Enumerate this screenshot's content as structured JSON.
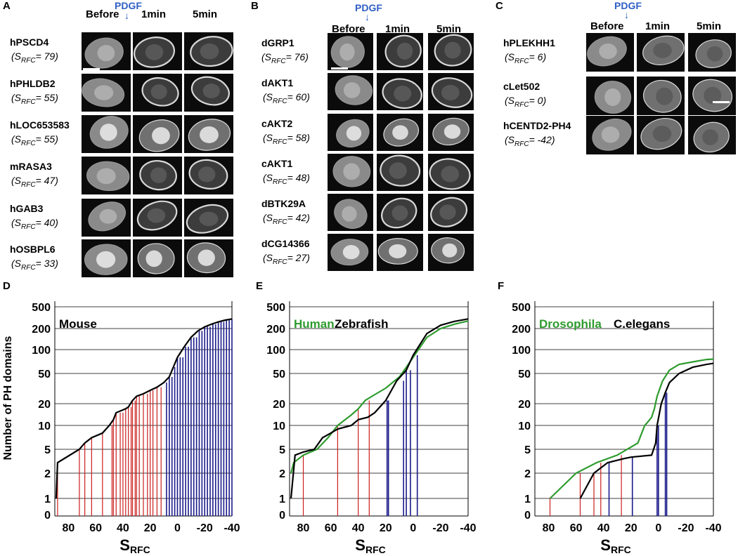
{
  "panels_top": [
    {
      "letter": "A",
      "stimulus": "PDGF",
      "columns": [
        "Before",
        "1min",
        "5min"
      ],
      "rows": [
        {
          "gene": "hPSCD4",
          "s_value": "79"
        },
        {
          "gene": "hPHLDB2",
          "s_value": "55"
        },
        {
          "gene": "hLOC653583",
          "s_value": "55"
        },
        {
          "gene": "mRASA3",
          "s_value": "47"
        },
        {
          "gene": "hGAB3",
          "s_value": "40"
        },
        {
          "gene": "hOSBPL6",
          "s_value": "33"
        }
      ]
    },
    {
      "letter": "B",
      "stimulus": "PDGF",
      "columns": [
        "Before",
        "1min",
        "5min"
      ],
      "rows": [
        {
          "gene": "dGRP1",
          "s_value": "76"
        },
        {
          "gene": "dAKT1",
          "s_value": "60"
        },
        {
          "gene": "cAKT2",
          "s_value": "58"
        },
        {
          "gene": "cAKT1",
          "s_value": "48"
        },
        {
          "gene": "dBTK29A",
          "s_value": "42"
        },
        {
          "gene": "dCG14366",
          "s_value": "27"
        }
      ]
    },
    {
      "letter": "C",
      "stimulus": "PDGF",
      "columns": [
        "Before",
        "1min",
        "5min"
      ],
      "rows": [
        {
          "gene": "hPLEKHH1",
          "s_value": "6"
        },
        {
          "gene": "cLet502",
          "s_value": "0"
        },
        {
          "gene": "hCENTD2-PH4",
          "s_value": "-42"
        }
      ]
    }
  ],
  "srfc_label": {
    "prefix": "S",
    "sub": "RFC",
    "eq": "= "
  },
  "chart_data": [
    {
      "letter": "D",
      "type": "line",
      "ylabel": "Number of PH domains",
      "xlabel": "S",
      "xlabel_sub": "RFC",
      "xlim": [
        90,
        -40
      ],
      "x_ticks": [
        "80",
        "60",
        "40",
        "20",
        "0",
        "-20",
        "-40"
      ],
      "y_scale": "log",
      "y_ticks": [
        "500",
        "200",
        "100",
        "50",
        "20",
        "10",
        "5",
        "2",
        "1",
        "0"
      ],
      "legend": [
        {
          "name": "Mouse",
          "color": "#000000"
        }
      ],
      "series": [
        {
          "name": "Mouse",
          "color": "#000000",
          "x": [
            89,
            88,
            72,
            68,
            63,
            55,
            50,
            47,
            45,
            38,
            36,
            33,
            30,
            25,
            20,
            15,
            10,
            6,
            3,
            0,
            -5,
            -10,
            -15,
            -20,
            -25,
            -30,
            -35,
            -40
          ],
          "y": [
            1,
            3,
            5,
            6,
            7,
            8,
            10,
            12,
            15,
            17,
            18,
            22,
            25,
            27,
            30,
            33,
            38,
            45,
            60,
            80,
            110,
            150,
            185,
            215,
            240,
            265,
            285,
            300
          ]
        }
      ],
      "red_lines_x": [
        88,
        72,
        68,
        63,
        55,
        48,
        47,
        45,
        42,
        40,
        38,
        36,
        34,
        33,
        31,
        30,
        28,
        25,
        22,
        20,
        18,
        15,
        12
      ],
      "blue_lines_x": [
        8,
        6,
        4,
        2,
        0,
        -2,
        -4,
        -6,
        -8,
        -10,
        -12,
        -14,
        -16,
        -18,
        -20,
        -22,
        -24,
        -26,
        -28,
        -30,
        -32,
        -34,
        -36,
        -38,
        -40
      ]
    },
    {
      "letter": "E",
      "type": "line",
      "xlabel": "S",
      "xlabel_sub": "RFC",
      "xlim": [
        90,
        -40
      ],
      "x_ticks": [
        "80",
        "60",
        "40",
        "20",
        "0",
        "-20",
        "-40"
      ],
      "y_scale": "log",
      "y_ticks": [
        "500",
        "200",
        "100",
        "50",
        "20",
        "10",
        "5",
        "2",
        "1",
        "0"
      ],
      "legend": [
        {
          "name": "Human",
          "color": "#2e9b2e"
        },
        {
          "name": "Zebrafish",
          "color": "#000000"
        }
      ],
      "series": [
        {
          "name": "Human",
          "color": "#2e9b2e",
          "x": [
            89,
            87,
            80,
            70,
            62,
            55,
            45,
            40,
            35,
            30,
            20,
            10,
            5,
            0,
            -10,
            -20,
            -30,
            -40
          ],
          "y": [
            2,
            3,
            4,
            5,
            7,
            10,
            14,
            17,
            22,
            25,
            32,
            45,
            60,
            80,
            150,
            200,
            240,
            275
          ]
        },
        {
          "name": "Zebrafish",
          "color": "#000000",
          "x": [
            89,
            86,
            80,
            72,
            66,
            60,
            55,
            45,
            40,
            33,
            28,
            20,
            12,
            5,
            0,
            -10,
            -20,
            -30,
            -40
          ],
          "y": [
            1,
            4,
            4.5,
            5,
            7,
            8,
            9,
            10,
            12,
            13,
            15,
            22,
            40,
            55,
            85,
            170,
            230,
            270,
            300
          ]
        }
      ],
      "red_lines_x": [
        80,
        55,
        40,
        32
      ],
      "blue_lines_x": [
        19,
        18,
        7,
        5,
        2,
        -3
      ]
    },
    {
      "letter": "F",
      "type": "line",
      "xlabel": "S",
      "xlabel_sub": "RFC",
      "xlim": [
        90,
        -40
      ],
      "x_ticks": [
        "80",
        "60",
        "40",
        "20",
        "0",
        "-20",
        "-40"
      ],
      "y_scale": "log",
      "y_ticks": [
        "500",
        "200",
        "100",
        "50",
        "20",
        "10",
        "5",
        "2",
        "1",
        "0"
      ],
      "legend": [
        {
          "name": "Drosophila",
          "color": "#2e9b2e"
        },
        {
          "name": "C.elegans",
          "color": "#000000"
        }
      ],
      "series": [
        {
          "name": "Drosophila",
          "color": "#2e9b2e",
          "x": [
            79,
            60,
            45,
            30,
            15,
            10,
            8,
            5,
            3,
            1,
            -3,
            -8,
            -15,
            -25,
            -35,
            -40
          ],
          "y": [
            1,
            2,
            3,
            4,
            6,
            10,
            11,
            13,
            17,
            25,
            40,
            55,
            65,
            70,
            75,
            76
          ]
        },
        {
          "name": "C.elegans",
          "color": "#000000",
          "x": [
            57,
            47,
            37,
            25,
            20,
            5,
            2,
            1,
            -2,
            -5,
            -8,
            -15,
            -25,
            -35,
            -40
          ],
          "y": [
            1,
            2,
            3,
            3.5,
            3.7,
            4,
            6,
            10,
            20,
            28,
            38,
            50,
            60,
            65,
            67
          ]
        }
      ],
      "red_lines_x": [
        79,
        57,
        47,
        42,
        27
      ],
      "blue_lines_x": [
        36,
        19,
        1,
        0,
        -5,
        -6
      ]
    }
  ]
}
